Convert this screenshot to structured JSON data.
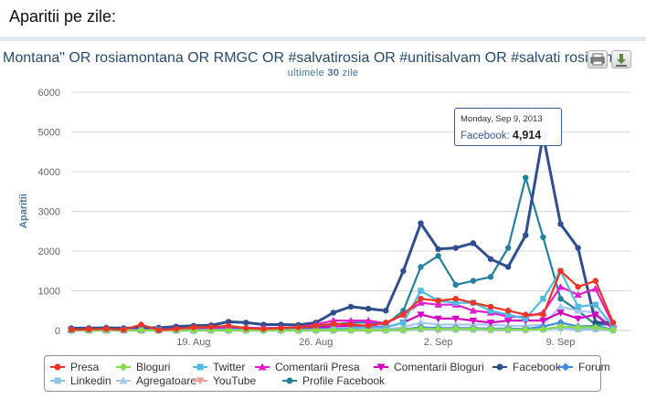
{
  "header": {
    "title": "Aparitii pe zile:"
  },
  "chart_data": {
    "type": "line",
    "title": "Montana\" OR rosiamontana OR RMGC OR #salvatirosia OR #unitisalvam OR #salvati rosia m",
    "subtitle_prefix": "ultimele",
    "subtitle_days": "30",
    "subtitle_suffix": "zile",
    "ylabel": "Aparitii",
    "ylim": [
      0,
      6000
    ],
    "yticks": [
      "0",
      "1000",
      "2000",
      "3000",
      "4000",
      "5000",
      "6000"
    ],
    "x_start": "2013-08-12",
    "x_end": "2013-09-13",
    "xticks": [
      {
        "date": "2013-08-19",
        "label": "19. Aug"
      },
      {
        "date": "2013-08-26",
        "label": "26. Aug"
      },
      {
        "date": "2013-09-02",
        "label": "2. Sep"
      },
      {
        "date": "2013-09-09",
        "label": "9. Sep"
      }
    ],
    "grid": true,
    "legend_position": "bottom",
    "series": [
      {
        "name": "Presa",
        "color": "#ee3524",
        "marker": "circle",
        "values": [
          20,
          30,
          40,
          20,
          150,
          10,
          40,
          80,
          90,
          120,
          60,
          40,
          60,
          80,
          120,
          170,
          150,
          120,
          200,
          400,
          800,
          750,
          800,
          700,
          600,
          500,
          400,
          400,
          1500,
          1100,
          1250,
          200
        ]
      },
      {
        "name": "Bloguri",
        "color": "#8bdb4a",
        "marker": "diamond",
        "values": [
          5,
          5,
          5,
          5,
          5,
          5,
          5,
          5,
          5,
          5,
          5,
          5,
          5,
          5,
          10,
          10,
          10,
          10,
          10,
          20,
          50,
          40,
          40,
          40,
          30,
          30,
          20,
          30,
          100,
          80,
          80,
          10
        ]
      },
      {
        "name": "Twitter",
        "color": "#4fbbe0",
        "marker": "square",
        "values": [
          10,
          10,
          10,
          10,
          10,
          10,
          10,
          10,
          20,
          20,
          20,
          20,
          20,
          20,
          30,
          40,
          60,
          80,
          80,
          200,
          1000,
          750,
          700,
          700,
          500,
          400,
          300,
          800,
          1500,
          600,
          650,
          100
        ]
      },
      {
        "name": "Comentarii Presa",
        "color": "#e41ecf",
        "marker": "triangle",
        "values": [
          20,
          20,
          20,
          20,
          20,
          20,
          40,
          60,
          60,
          80,
          70,
          60,
          70,
          80,
          150,
          250,
          250,
          250,
          180,
          400,
          700,
          650,
          650,
          500,
          450,
          350,
          350,
          450,
          1100,
          900,
          1050,
          150
        ]
      },
      {
        "name": "Comentarii Bloguri",
        "color": "#d400c2",
        "marker": "triangle-down",
        "values": [
          10,
          10,
          10,
          10,
          10,
          10,
          10,
          10,
          20,
          20,
          20,
          20,
          20,
          20,
          60,
          100,
          120,
          120,
          80,
          200,
          400,
          300,
          300,
          250,
          200,
          250,
          250,
          250,
          450,
          300,
          400,
          50
        ]
      },
      {
        "name": "Facebook",
        "color": "#2f4d8f",
        "marker": "circle",
        "values": [
          60,
          60,
          70,
          60,
          70,
          70,
          100,
          120,
          130,
          220,
          200,
          150,
          150,
          140,
          200,
          450,
          600,
          550,
          500,
          1500,
          2700,
          2050,
          2080,
          2200,
          1800,
          1600,
          2400,
          4914,
          2680,
          2080,
          200,
          200
        ]
      },
      {
        "name": "Forum",
        "color": "#3f8de0",
        "marker": "diamond",
        "values": [
          5,
          5,
          5,
          5,
          5,
          5,
          5,
          5,
          5,
          5,
          5,
          5,
          5,
          5,
          5,
          10,
          10,
          10,
          10,
          30,
          80,
          60,
          60,
          60,
          50,
          50,
          40,
          100,
          200,
          100,
          120,
          20
        ]
      },
      {
        "name": "Linkedin",
        "color": "#8fc3ea",
        "marker": "square",
        "values": [
          0,
          0,
          0,
          0,
          0,
          0,
          0,
          0,
          0,
          0,
          0,
          0,
          0,
          0,
          0,
          0,
          0,
          0,
          0,
          0,
          30,
          20,
          20,
          20,
          10,
          10,
          10,
          30,
          60,
          30,
          30,
          0
        ]
      },
      {
        "name": "Agregatoare",
        "color": "#a6c8f0",
        "marker": "triangle",
        "values": [
          5,
          5,
          5,
          5,
          5,
          5,
          5,
          5,
          10,
          10,
          10,
          10,
          10,
          10,
          20,
          30,
          40,
          40,
          30,
          80,
          200,
          150,
          150,
          150,
          150,
          120,
          120,
          150,
          600,
          500,
          450,
          80
        ]
      },
      {
        "name": "YouTube",
        "color": "#f19c9c",
        "marker": "triangle-down",
        "values": [
          0,
          0,
          0,
          0,
          0,
          0,
          0,
          0,
          0,
          0,
          0,
          0,
          0,
          0,
          0,
          0,
          10,
          10,
          10,
          20,
          40,
          30,
          30,
          30,
          30,
          20,
          20,
          30,
          80,
          60,
          50,
          10
        ]
      },
      {
        "name": "Profile Facebook",
        "color": "#24829e",
        "marker": "circle",
        "values": [
          20,
          20,
          20,
          20,
          20,
          20,
          30,
          40,
          40,
          60,
          50,
          40,
          50,
          60,
          80,
          150,
          200,
          200,
          150,
          500,
          1600,
          1880,
          1150,
          1250,
          1350,
          2080,
          3850,
          2350,
          800,
          500,
          150,
          150
        ]
      }
    ],
    "tooltip": {
      "date": "Monday, Sep 9, 2013",
      "series": "Facebook",
      "value": "4,914"
    }
  }
}
